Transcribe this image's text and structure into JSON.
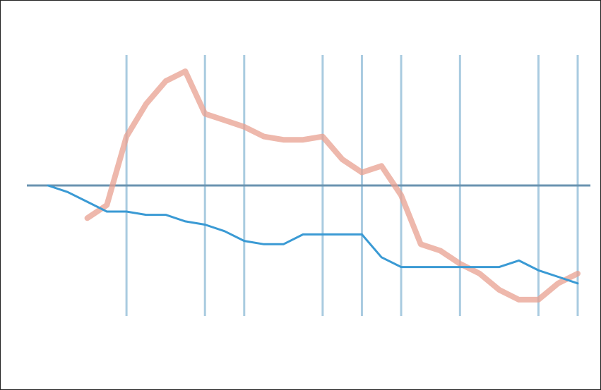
{
  "chart_data": {
    "type": "line",
    "title": "",
    "xlabel": "",
    "ylabel": "",
    "grid": "vertical",
    "legend_position": "bottom",
    "x": [
      0,
      1,
      2,
      3,
      4,
      5,
      6,
      7,
      8,
      9,
      10,
      11,
      12,
      13,
      14,
      15,
      16,
      17,
      18,
      19,
      20,
      21,
      22,
      23,
      24,
      25,
      26,
      27
    ],
    "ylim": [
      -4,
      4
    ],
    "zero_value": 0,
    "series": [
      {
        "name": "",
        "color": "#e8a090",
        "values": [
          null,
          null,
          -1.0,
          -0.6,
          1.5,
          2.5,
          3.2,
          3.5,
          2.2,
          2.0,
          1.8,
          1.5,
          1.4,
          1.4,
          1.5,
          0.8,
          0.4,
          0.6,
          -0.3,
          -1.8,
          -2.0,
          -2.4,
          -2.7,
          -3.2,
          -3.5,
          -3.5,
          -3.0,
          -2.7
        ]
      },
      {
        "name": "",
        "color": "#3a9ad4",
        "values": [
          0,
          -0.2,
          -0.5,
          -0.8,
          -0.8,
          -0.9,
          -0.9,
          -1.1,
          -1.2,
          -1.4,
          -1.7,
          -1.8,
          -1.8,
          -1.5,
          -1.5,
          -1.5,
          -1.5,
          -2.2,
          -2.5,
          -2.5,
          -2.5,
          -2.5,
          -2.5,
          -2.5,
          -2.3,
          -2.6,
          -2.8,
          -3.0
        ]
      }
    ],
    "gridline_x": [
      4,
      8,
      10,
      14,
      16,
      18,
      21,
      25,
      27
    ]
  }
}
